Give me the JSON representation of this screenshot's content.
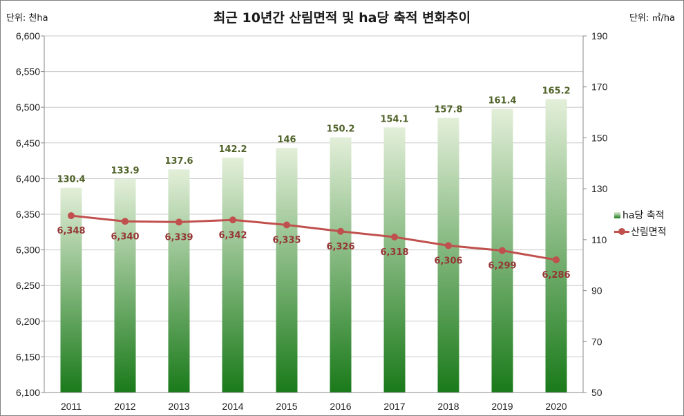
{
  "title": "최근 10년간 산림면적 및 ha당 축적 변화추이",
  "unit_left": "단위: 천ha",
  "unit_right": "단위: ㎥/ha",
  "colors": {
    "bar_top": "#e3efd9",
    "bar_bottom": "#1a7a1a",
    "line": "#c0504d",
    "bar_label": "#4f6228",
    "line_label": "#943634"
  },
  "legend": {
    "bar": "ha당 축적",
    "line": "산림면적"
  },
  "chart_data": {
    "type": "bar",
    "title": "최근 10년간 산림면적 및 ha당 축적 변화추이",
    "categories": [
      "2011",
      "2012",
      "2013",
      "2014",
      "2015",
      "2016",
      "2017",
      "2018",
      "2019",
      "2020"
    ],
    "y_left": {
      "label": "단위: 천ha",
      "lim": [
        6100,
        6600
      ],
      "ticks": [
        "6,100",
        "6,150",
        "6,200",
        "6,250",
        "6,300",
        "6,350",
        "6,400",
        "6,450",
        "6,500",
        "6,550",
        "6,600"
      ]
    },
    "y_right": {
      "label": "단위: ㎥/ha",
      "lim": [
        50,
        190
      ],
      "ticks": [
        "50",
        "70",
        "90",
        "110",
        "130",
        "150",
        "170",
        "190"
      ]
    },
    "series": [
      {
        "name": "ha당 축적",
        "type": "bar",
        "axis": "right",
        "values": [
          130.4,
          133.9,
          137.6,
          142.2,
          146,
          150.2,
          154.1,
          157.8,
          161.4,
          165.2
        ],
        "labels": [
          "130.4",
          "133.9",
          "137.6",
          "142.2",
          "146",
          "150.2",
          "154.1",
          "157.8",
          "161.4",
          "165.2"
        ]
      },
      {
        "name": "산림면적",
        "type": "line",
        "axis": "left",
        "values": [
          6348,
          6340,
          6339,
          6342,
          6335,
          6326,
          6318,
          6306,
          6299,
          6286
        ],
        "labels": [
          "6,348",
          "6,340",
          "6,339",
          "6,342",
          "6,335",
          "6,326",
          "6,318",
          "6,306",
          "6,299",
          "6,286"
        ]
      }
    ],
    "grid": true,
    "legend_position": "right"
  }
}
